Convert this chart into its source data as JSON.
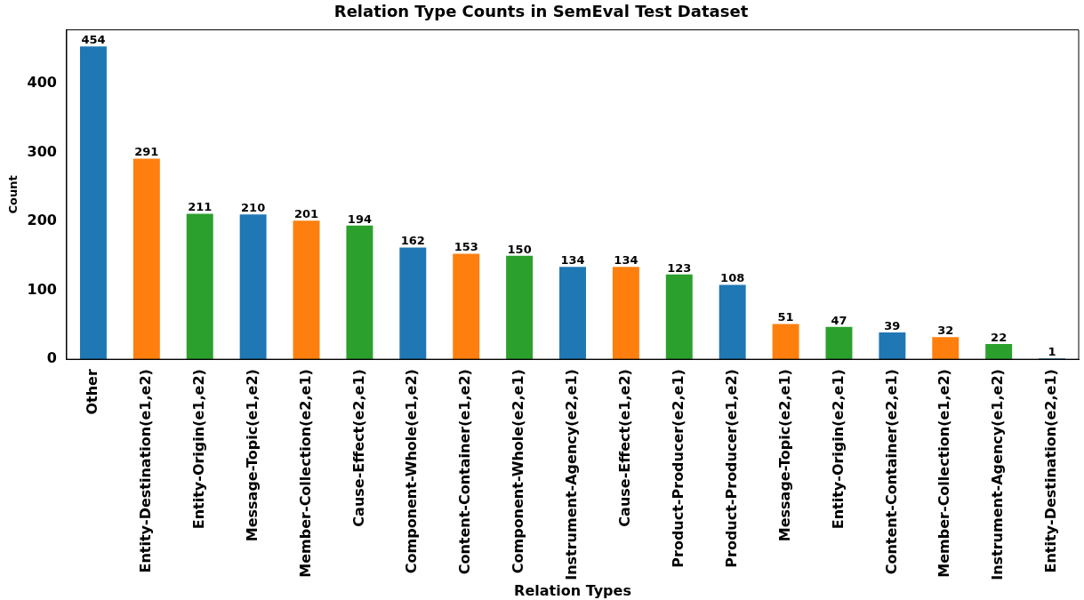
{
  "chart_data": {
    "type": "bar",
    "title": "Relation Type Counts in SemEval Test Dataset",
    "xlabel": "Relation Types",
    "ylabel": "Count",
    "categories": [
      "Other",
      "Entity-Destination(e1,e2)",
      "Entity-Origin(e1,e2)",
      "Message-Topic(e1,e2)",
      "Member-Collection(e2,e1)",
      "Cause-Effect(e2,e1)",
      "Component-Whole(e1,e2)",
      "Content-Container(e1,e2)",
      "Component-Whole(e2,e1)",
      "Instrument-Agency(e2,e1)",
      "Cause-Effect(e1,e2)",
      "Product-Producer(e2,e1)",
      "Product-Producer(e1,e2)",
      "Message-Topic(e2,e1)",
      "Entity-Origin(e2,e1)",
      "Content-Container(e2,e1)",
      "Member-Collection(e1,e2)",
      "Instrument-Agency(e1,e2)",
      "Entity-Destination(e2,e1)"
    ],
    "values": [
      454,
      291,
      211,
      210,
      201,
      194,
      162,
      153,
      150,
      134,
      134,
      123,
      108,
      51,
      47,
      39,
      32,
      22,
      1
    ],
    "colors": [
      "#1f77b4",
      "#ff7f0e",
      "#2ca02c",
      "#1f77b4",
      "#ff7f0e",
      "#2ca02c",
      "#1f77b4",
      "#ff7f0e",
      "#2ca02c",
      "#1f77b4",
      "#ff7f0e",
      "#2ca02c",
      "#1f77b4",
      "#ff7f0e",
      "#2ca02c",
      "#1f77b4",
      "#ff7f0e",
      "#2ca02c",
      "#1f77b4"
    ],
    "ylim": [
      0,
      478
    ],
    "yticks": [
      0,
      100,
      200,
      300,
      400
    ],
    "data_labels": true,
    "grid": false,
    "legend": false
  }
}
